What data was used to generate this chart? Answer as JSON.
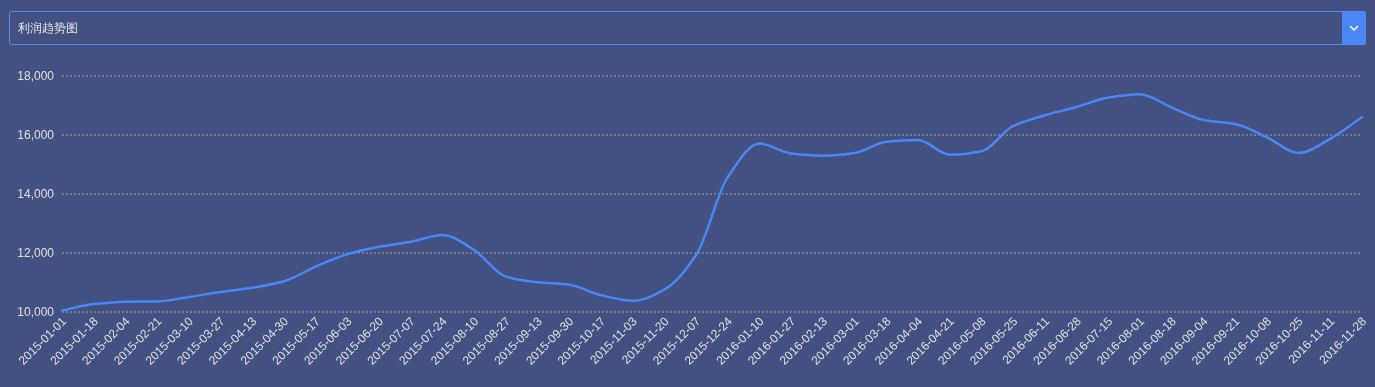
{
  "chart_data": {
    "type": "line",
    "title": "利润趋势图",
    "categories": [
      "2015-01-01",
      "2015-01-18",
      "2015-02-04",
      "2015-02-21",
      "2015-03-10",
      "2015-03-27",
      "2015-04-13",
      "2015-04-30",
      "2015-05-17",
      "2015-06-03",
      "2015-06-20",
      "2015-07-07",
      "2015-07-24",
      "2015-08-10",
      "2015-08-27",
      "2015-09-13",
      "2015-09-30",
      "2015-10-17",
      "2015-11-03",
      "2015-11-20",
      "2015-12-07",
      "2015-12-24",
      "2016-01-10",
      "2016-01-27",
      "2016-02-13",
      "2016-03-01",
      "2016-03-18",
      "2016-04-04",
      "2016-04-21",
      "2016-05-08",
      "2016-05-25",
      "2016-06-11",
      "2016-06-28",
      "2016-07-15",
      "2016-08-01",
      "2016-08-18",
      "2016-09-04",
      "2016-09-21",
      "2016-10-08",
      "2016-10-25",
      "2016-11-11",
      "2016-11-28"
    ],
    "series": [
      {
        "color": "#4a86f5",
        "values": [
          10050,
          10270,
          10350,
          10360,
          10510,
          10680,
          10820,
          11040,
          11540,
          11960,
          12210,
          12380,
          12610,
          12100,
          11200,
          11010,
          10920,
          10570,
          10380,
          10760,
          11930,
          14580,
          15710,
          15370,
          15300,
          15390,
          15770,
          15830,
          15330,
          15450,
          16310,
          16670,
          16950,
          17270,
          17380,
          16930,
          16510,
          16370,
          15920,
          15390,
          15870,
          16600
        ]
      }
    ],
    "ylim": [
      10000,
      18000
    ],
    "yticks": [
      {
        "value": 10000,
        "label": "10,000"
      },
      {
        "value": 12000,
        "label": "12,000"
      },
      {
        "value": 14000,
        "label": "14,000"
      },
      {
        "value": 16000,
        "label": "16,000"
      },
      {
        "value": 18000,
        "label": "18,000"
      }
    ],
    "grid": "y",
    "line_style": "solid",
    "marker": "none"
  }
}
